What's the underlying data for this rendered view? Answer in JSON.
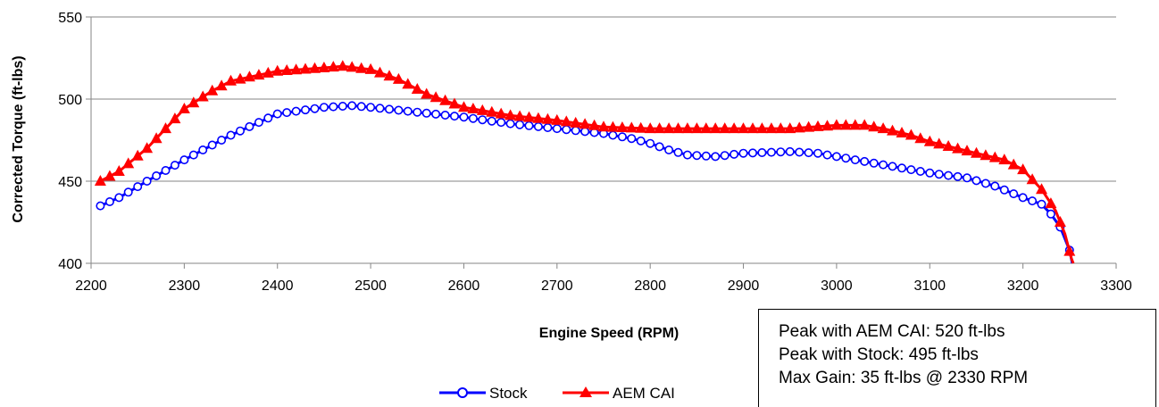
{
  "chart_data": {
    "type": "line",
    "xlabel": "Engine Speed (RPM)",
    "ylabel": "Corrected Torque (ft-lbs)",
    "xlim": [
      2200,
      3300
    ],
    "ylim": [
      400,
      550
    ],
    "xticks": [
      2200,
      2300,
      2400,
      2500,
      2600,
      2700,
      2800,
      2900,
      3000,
      3100,
      3200,
      3300
    ],
    "yticks": [
      400,
      450,
      500,
      550
    ],
    "grid": "horizontal",
    "legend_position": "bottom-center",
    "series": [
      {
        "name": "Stock",
        "color": "#0000ff",
        "marker": "circle-open",
        "points": [
          [
            2210,
            435
          ],
          [
            2230,
            440
          ],
          [
            2260,
            450
          ],
          [
            2300,
            463
          ],
          [
            2350,
            478
          ],
          [
            2400,
            491
          ],
          [
            2450,
            495
          ],
          [
            2480,
            496
          ],
          [
            2500,
            495
          ],
          [
            2550,
            492
          ],
          [
            2600,
            489
          ],
          [
            2650,
            485
          ],
          [
            2700,
            482
          ],
          [
            2750,
            479
          ],
          [
            2780,
            476
          ],
          [
            2800,
            473
          ],
          [
            2820,
            469
          ],
          [
            2840,
            466
          ],
          [
            2870,
            465
          ],
          [
            2900,
            467
          ],
          [
            2950,
            468
          ],
          [
            2980,
            467
          ],
          [
            3000,
            465
          ],
          [
            3050,
            460
          ],
          [
            3100,
            455
          ],
          [
            3140,
            452
          ],
          [
            3170,
            447
          ],
          [
            3200,
            440
          ],
          [
            3220,
            436
          ],
          [
            3230,
            430
          ],
          [
            3240,
            422
          ],
          [
            3250,
            408
          ],
          [
            3253,
            400
          ]
        ]
      },
      {
        "name": "AEM CAI",
        "color": "#ff0000",
        "marker": "triangle-filled",
        "points": [
          [
            2210,
            450
          ],
          [
            2230,
            456
          ],
          [
            2260,
            470
          ],
          [
            2300,
            494
          ],
          [
            2330,
            505
          ],
          [
            2350,
            511
          ],
          [
            2400,
            517
          ],
          [
            2450,
            519
          ],
          [
            2470,
            520
          ],
          [
            2500,
            518
          ],
          [
            2530,
            512
          ],
          [
            2560,
            503
          ],
          [
            2600,
            495
          ],
          [
            2650,
            490
          ],
          [
            2700,
            487
          ],
          [
            2750,
            483
          ],
          [
            2800,
            482
          ],
          [
            2850,
            482
          ],
          [
            2900,
            482
          ],
          [
            2950,
            482
          ],
          [
            3000,
            484
          ],
          [
            3030,
            484
          ],
          [
            3050,
            482
          ],
          [
            3080,
            478
          ],
          [
            3100,
            474
          ],
          [
            3150,
            467
          ],
          [
            3180,
            463
          ],
          [
            3200,
            457
          ],
          [
            3220,
            445
          ],
          [
            3235,
            432
          ],
          [
            3245,
            418
          ],
          [
            3252,
            403
          ],
          [
            3254,
            400
          ]
        ]
      }
    ]
  },
  "info_box": {
    "line1": "Peak with AEM CAI:  520 ft-lbs",
    "line2": "Peak with Stock:  495 ft-lbs",
    "line3": "Max Gain:  35 ft-lbs @ 2330 RPM"
  }
}
